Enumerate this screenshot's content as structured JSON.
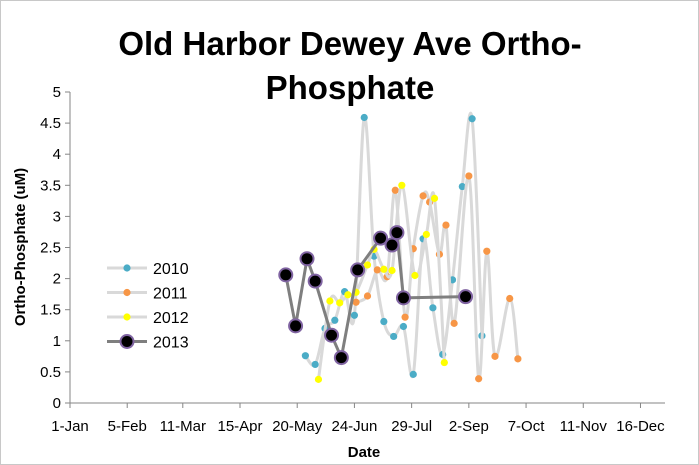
{
  "chart_data": {
    "type": "line",
    "title": "Old Harbor Dewey Ave Ortho-Phosphate",
    "title_lines": [
      "Old Harbor Dewey Ave Ortho-",
      "Phosphate"
    ],
    "xlabel": "Date",
    "ylabel": "Ortho-Phosphate  (uM)",
    "grid": false,
    "legend_position": "left",
    "xlim": [
      1,
      365
    ],
    "ylim": [
      0,
      5
    ],
    "x_ticks": [
      {
        "label": "1-Jan",
        "day": 1
      },
      {
        "label": "5-Feb",
        "day": 36
      },
      {
        "label": "11-Mar",
        "day": 70
      },
      {
        "label": "15-Apr",
        "day": 105
      },
      {
        "label": "20-May",
        "day": 140
      },
      {
        "label": "24-Jun",
        "day": 175
      },
      {
        "label": "29-Jul",
        "day": 210
      },
      {
        "label": "2-Sep",
        "day": 245
      },
      {
        "label": "7-Oct",
        "day": 280
      },
      {
        "label": "11-Nov",
        "day": 315
      },
      {
        "label": "16-Dec",
        "day": 350
      }
    ],
    "y_ticks": [
      "0",
      "0.5",
      "1",
      "1.5",
      "2",
      "2.5",
      "3",
      "3.5",
      "4",
      "4.5",
      "5"
    ],
    "series": [
      {
        "name": "2010",
        "color": "#4bacc6",
        "line_color": "#d9d9d9",
        "marker": "small-dot",
        "points": [
          [
            145,
            0.76
          ],
          [
            151,
            0.62
          ],
          [
            157,
            1.2
          ],
          [
            163,
            1.33
          ],
          [
            169,
            1.79
          ],
          [
            175,
            1.41
          ],
          [
            181,
            4.59
          ],
          [
            187,
            2.36
          ],
          [
            193,
            1.31
          ],
          [
            199,
            1.07
          ],
          [
            205,
            1.23
          ],
          [
            211,
            0.46
          ],
          [
            217,
            2.64
          ],
          [
            223,
            1.53
          ],
          [
            229,
            0.78
          ],
          [
            235,
            1.98
          ],
          [
            241,
            3.48
          ],
          [
            247,
            4.57
          ],
          [
            253,
            1.08
          ]
        ]
      },
      {
        "name": "2011",
        "color": "#f79646",
        "line_color": "#d9d9d9",
        "marker": "small-dot",
        "points": [
          [
            176,
            1.62
          ],
          [
            183,
            1.72
          ],
          [
            189,
            2.14
          ],
          [
            195,
            2.03
          ],
          [
            200,
            3.42
          ],
          [
            206,
            1.38
          ],
          [
            211,
            2.48
          ],
          [
            217,
            3.33
          ],
          [
            221,
            3.23
          ],
          [
            227,
            2.39
          ],
          [
            231,
            2.86
          ],
          [
            236,
            1.28
          ],
          [
            245,
            3.65
          ],
          [
            251,
            0.39
          ],
          [
            256,
            2.44
          ],
          [
            261,
            0.75
          ],
          [
            270,
            1.68
          ],
          [
            275,
            0.71
          ]
        ]
      },
      {
        "name": "2012",
        "color": "#ffff00",
        "line_color": "#d9d9d9",
        "marker": "small-dot",
        "points": [
          [
            153,
            0.38
          ],
          [
            160,
            1.64
          ],
          [
            166,
            1.61
          ],
          [
            171,
            1.74
          ],
          [
            176,
            1.78
          ],
          [
            183,
            2.22
          ],
          [
            187,
            2.47
          ],
          [
            193,
            2.15
          ],
          [
            198,
            2.13
          ],
          [
            204,
            3.5
          ],
          [
            212,
            2.05
          ],
          [
            219,
            2.71
          ],
          [
            224,
            3.29
          ],
          [
            230,
            0.65
          ]
        ]
      },
      {
        "name": "2013",
        "color": "#000000",
        "line_color": "#7f7f7f",
        "marker": "large-circle",
        "points": [
          [
            133,
            2.06
          ],
          [
            139,
            1.24
          ],
          [
            146,
            2.32
          ],
          [
            151,
            1.96
          ],
          [
            161,
            1.09
          ],
          [
            167,
            0.73
          ],
          [
            177,
            2.14
          ],
          [
            191,
            2.65
          ],
          [
            198,
            2.54
          ],
          [
            201,
            2.74
          ],
          [
            205,
            1.69
          ],
          [
            243,
            1.71
          ]
        ]
      }
    ]
  }
}
